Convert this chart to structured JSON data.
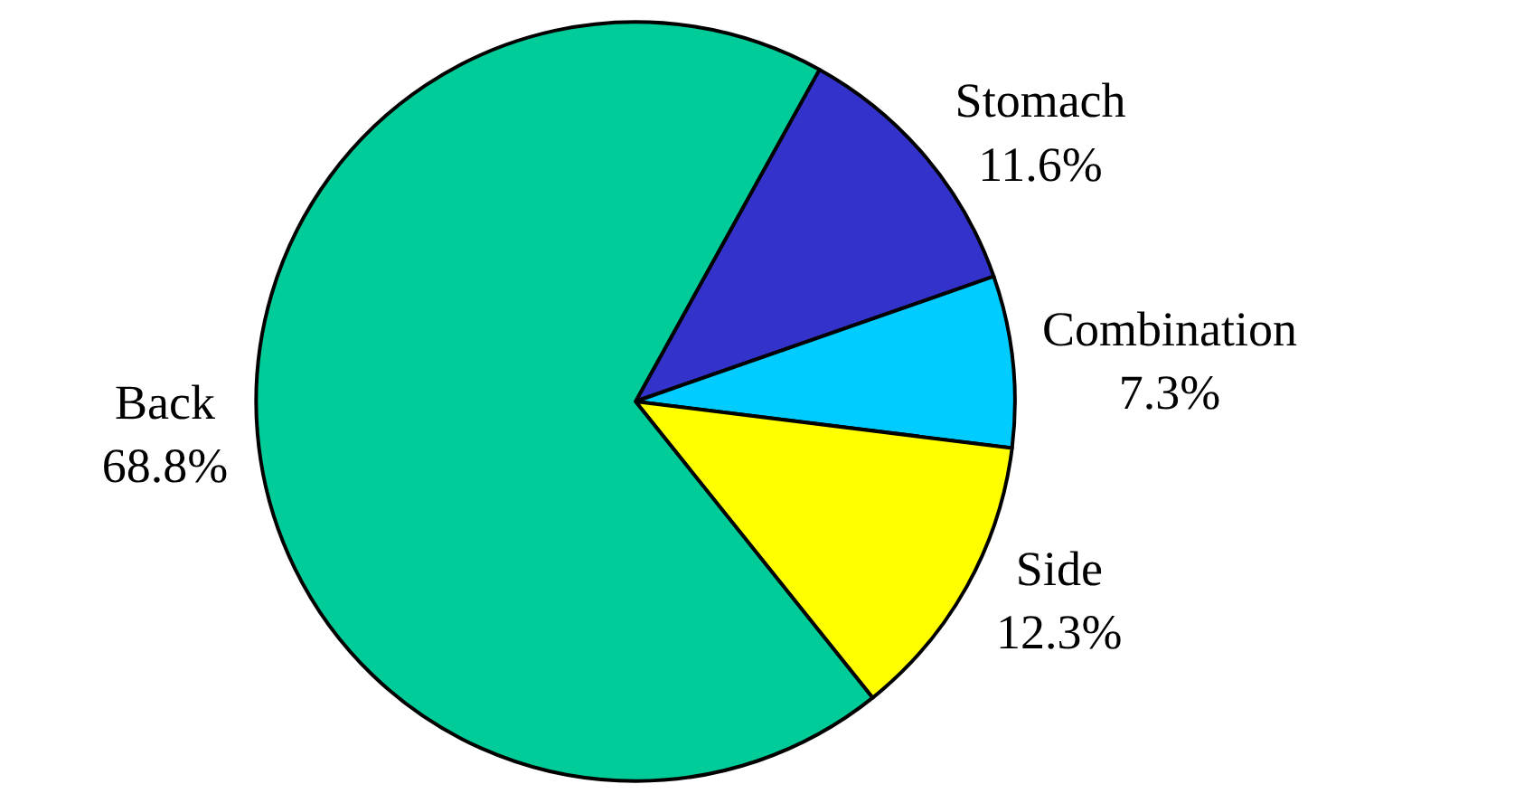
{
  "chart_data": {
    "type": "pie",
    "categories": [
      "Stomach",
      "Combination",
      "Side",
      "Back"
    ],
    "values": [
      11.6,
      7.3,
      12.3,
      68.8
    ],
    "colors": [
      "#3333cc",
      "#00ccff",
      "#ffff00",
      "#00cc99"
    ],
    "value_labels": [
      "11.6%",
      "7.3%",
      "12.3%",
      "68.8%"
    ],
    "legend": false
  }
}
